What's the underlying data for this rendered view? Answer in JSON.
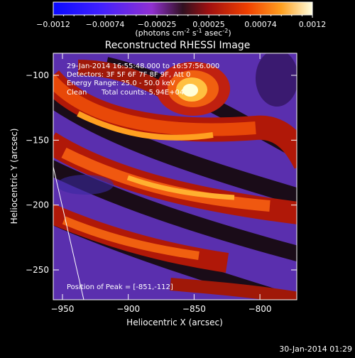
{
  "chart_data": {
    "type": "heatmap",
    "title": "Reconstructed RHESSI Image",
    "xlabel": "Heliocentric X (arcsec)",
    "ylabel": "Heliocentric Y (arcsec)",
    "xlim": [
      -957,
      -772
    ],
    "ylim": [
      -273,
      -83
    ],
    "xticks": [
      -950,
      -900,
      -850,
      -800
    ],
    "yticks": [
      -100,
      -150,
      -200,
      -250
    ],
    "colorbar": {
      "min": -0.0012,
      "max": 0.0012,
      "ticks": [
        "-0.0012",
        "-0.00074",
        "-0.00025",
        "0.00025",
        "0.00074",
        "0.0012"
      ],
      "unit_label": "(photons cm",
      "unit_exp1": "-2",
      "unit_mid": " s",
      "unit_exp2": "-1",
      "unit_mid2": " asec",
      "unit_exp3": "-2",
      "unit_end": ")"
    },
    "annotations": {
      "time_range": "29-Jan-2014 16:55:48.000 to 16:57:56.000",
      "detectors": "Detectors: 3F 5F 6F 7F 8F 9F, Att 0",
      "energy": "Energy Range: 25.0 - 50.0 keV",
      "method": "Clean",
      "counts": "Total counts: 5.94E+04",
      "peak": "Position of Peak = [-851,-112]"
    },
    "peak": {
      "x": -851,
      "y": -112
    }
  },
  "footer": {
    "timestamp": "30-Jan-2014 01:29"
  }
}
